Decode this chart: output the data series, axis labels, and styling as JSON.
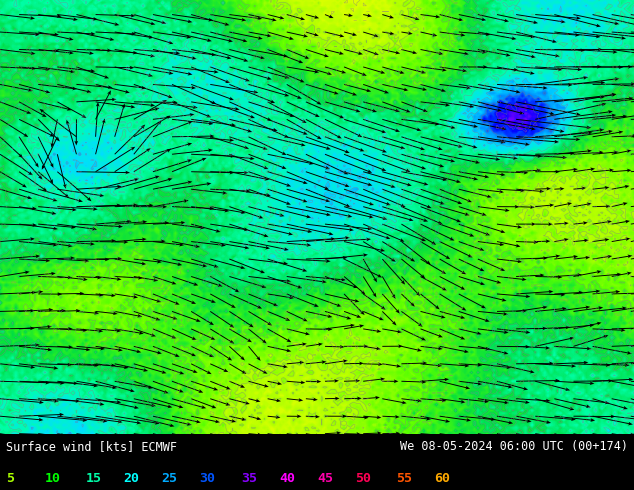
{
  "title_left": "Surface wind [kts] ECMWF",
  "title_right": "We 08-05-2024 06:00 UTC (00+174)",
  "legend_values": [
    5,
    10,
    15,
    20,
    25,
    30,
    35,
    40,
    45,
    50,
    55,
    60
  ],
  "legend_colors": [
    "#aaff00",
    "#00ff00",
    "#00ffaa",
    "#00ffff",
    "#00aaff",
    "#0055ff",
    "#8800ff",
    "#ff00ff",
    "#ff00aa",
    "#ff0055",
    "#ff5500",
    "#ffaa00"
  ],
  "colormap_levels": [
    0,
    5,
    10,
    15,
    20,
    25,
    30,
    35,
    40,
    45,
    50,
    55,
    60
  ],
  "colormap_colors": [
    "#ffff80",
    "#ddff00",
    "#aaff00",
    "#55ff00",
    "#00dd44",
    "#00ffaa",
    "#00ddff",
    "#0088ff",
    "#0000ff",
    "#8800ff",
    "#ff00ff",
    "#ff0066",
    "#ff8800"
  ],
  "fig_width": 6.34,
  "fig_height": 4.9,
  "dpi": 100
}
